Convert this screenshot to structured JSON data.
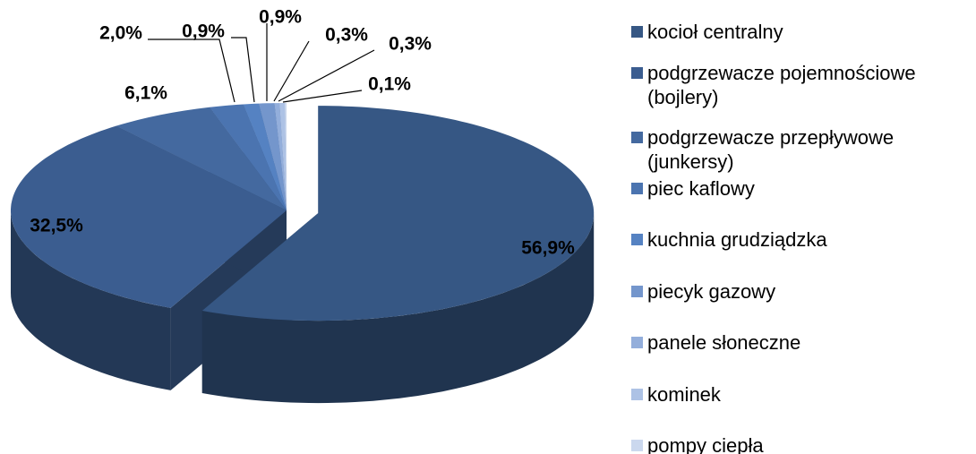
{
  "chart_data": {
    "type": "pie",
    "categories": [
      "kocioł centralny",
      "podgrzewacze pojemnościowe (bojlery)",
      "podgrzewacze przepływowe (junkersy)",
      "piec kaflowy",
      "kuchnia grudziądzka",
      "piecyk gazowy",
      "panele słoneczne",
      "kominek",
      "pompy ciepła"
    ],
    "values": [
      56.9,
      32.5,
      6.1,
      2.0,
      0.9,
      0.9,
      0.3,
      0.3,
      0.1
    ],
    "value_labels": [
      "56,9%",
      "32,5%",
      "6,1%",
      "2,0%",
      "0,9%",
      "0,9%",
      "0,3%",
      "0,3%",
      "0,1%"
    ],
    "colors": [
      "#365784",
      "#3b5d90",
      "#44699f",
      "#4b74b0",
      "#5582c2",
      "#7496cc",
      "#93aedb",
      "#adc2e5",
      "#cbd8ee"
    ],
    "legend": "right"
  }
}
